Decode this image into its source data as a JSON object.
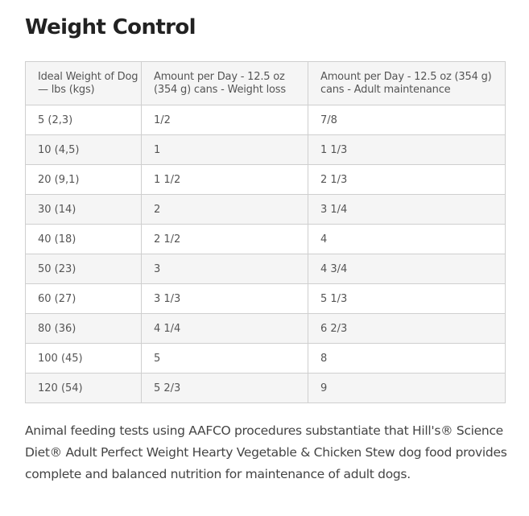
{
  "heading": "Weight Control",
  "table": {
    "headers": [
      "Ideal Weight of Dog — lbs (kgs)",
      "Amount per Day - 12.5 oz (354 g) cans - Weight loss",
      "Amount per Day - 12.5 oz (354 g) cans - Adult maintenance"
    ],
    "rows": [
      [
        "5 (2,3)",
        "1/2",
        "7/8"
      ],
      [
        "10 (4,5)",
        "1",
        "1 1/3"
      ],
      [
        "20 (9,1)",
        "1 1/2",
        "2 1/3"
      ],
      [
        "30 (14)",
        "2",
        "3 1/4"
      ],
      [
        "40 (18)",
        "2 1/2",
        "4"
      ],
      [
        "50 (23)",
        "3",
        "4 3/4"
      ],
      [
        "60 (27)",
        "3 1/3",
        "5 1/3"
      ],
      [
        "80 (36)",
        "4 1/4",
        "6 2/3"
      ],
      [
        "100 (45)",
        "5",
        "8"
      ],
      [
        "120 (54)",
        "5 2/3",
        "9"
      ]
    ]
  },
  "note": "Animal feeding tests using AAFCO procedures substantiate that Hill's® Science Diet® Adult Perfect Weight Hearty Vegetable & Chicken Stew dog food provides complete and balanced nutrition for maintenance of adult dogs."
}
